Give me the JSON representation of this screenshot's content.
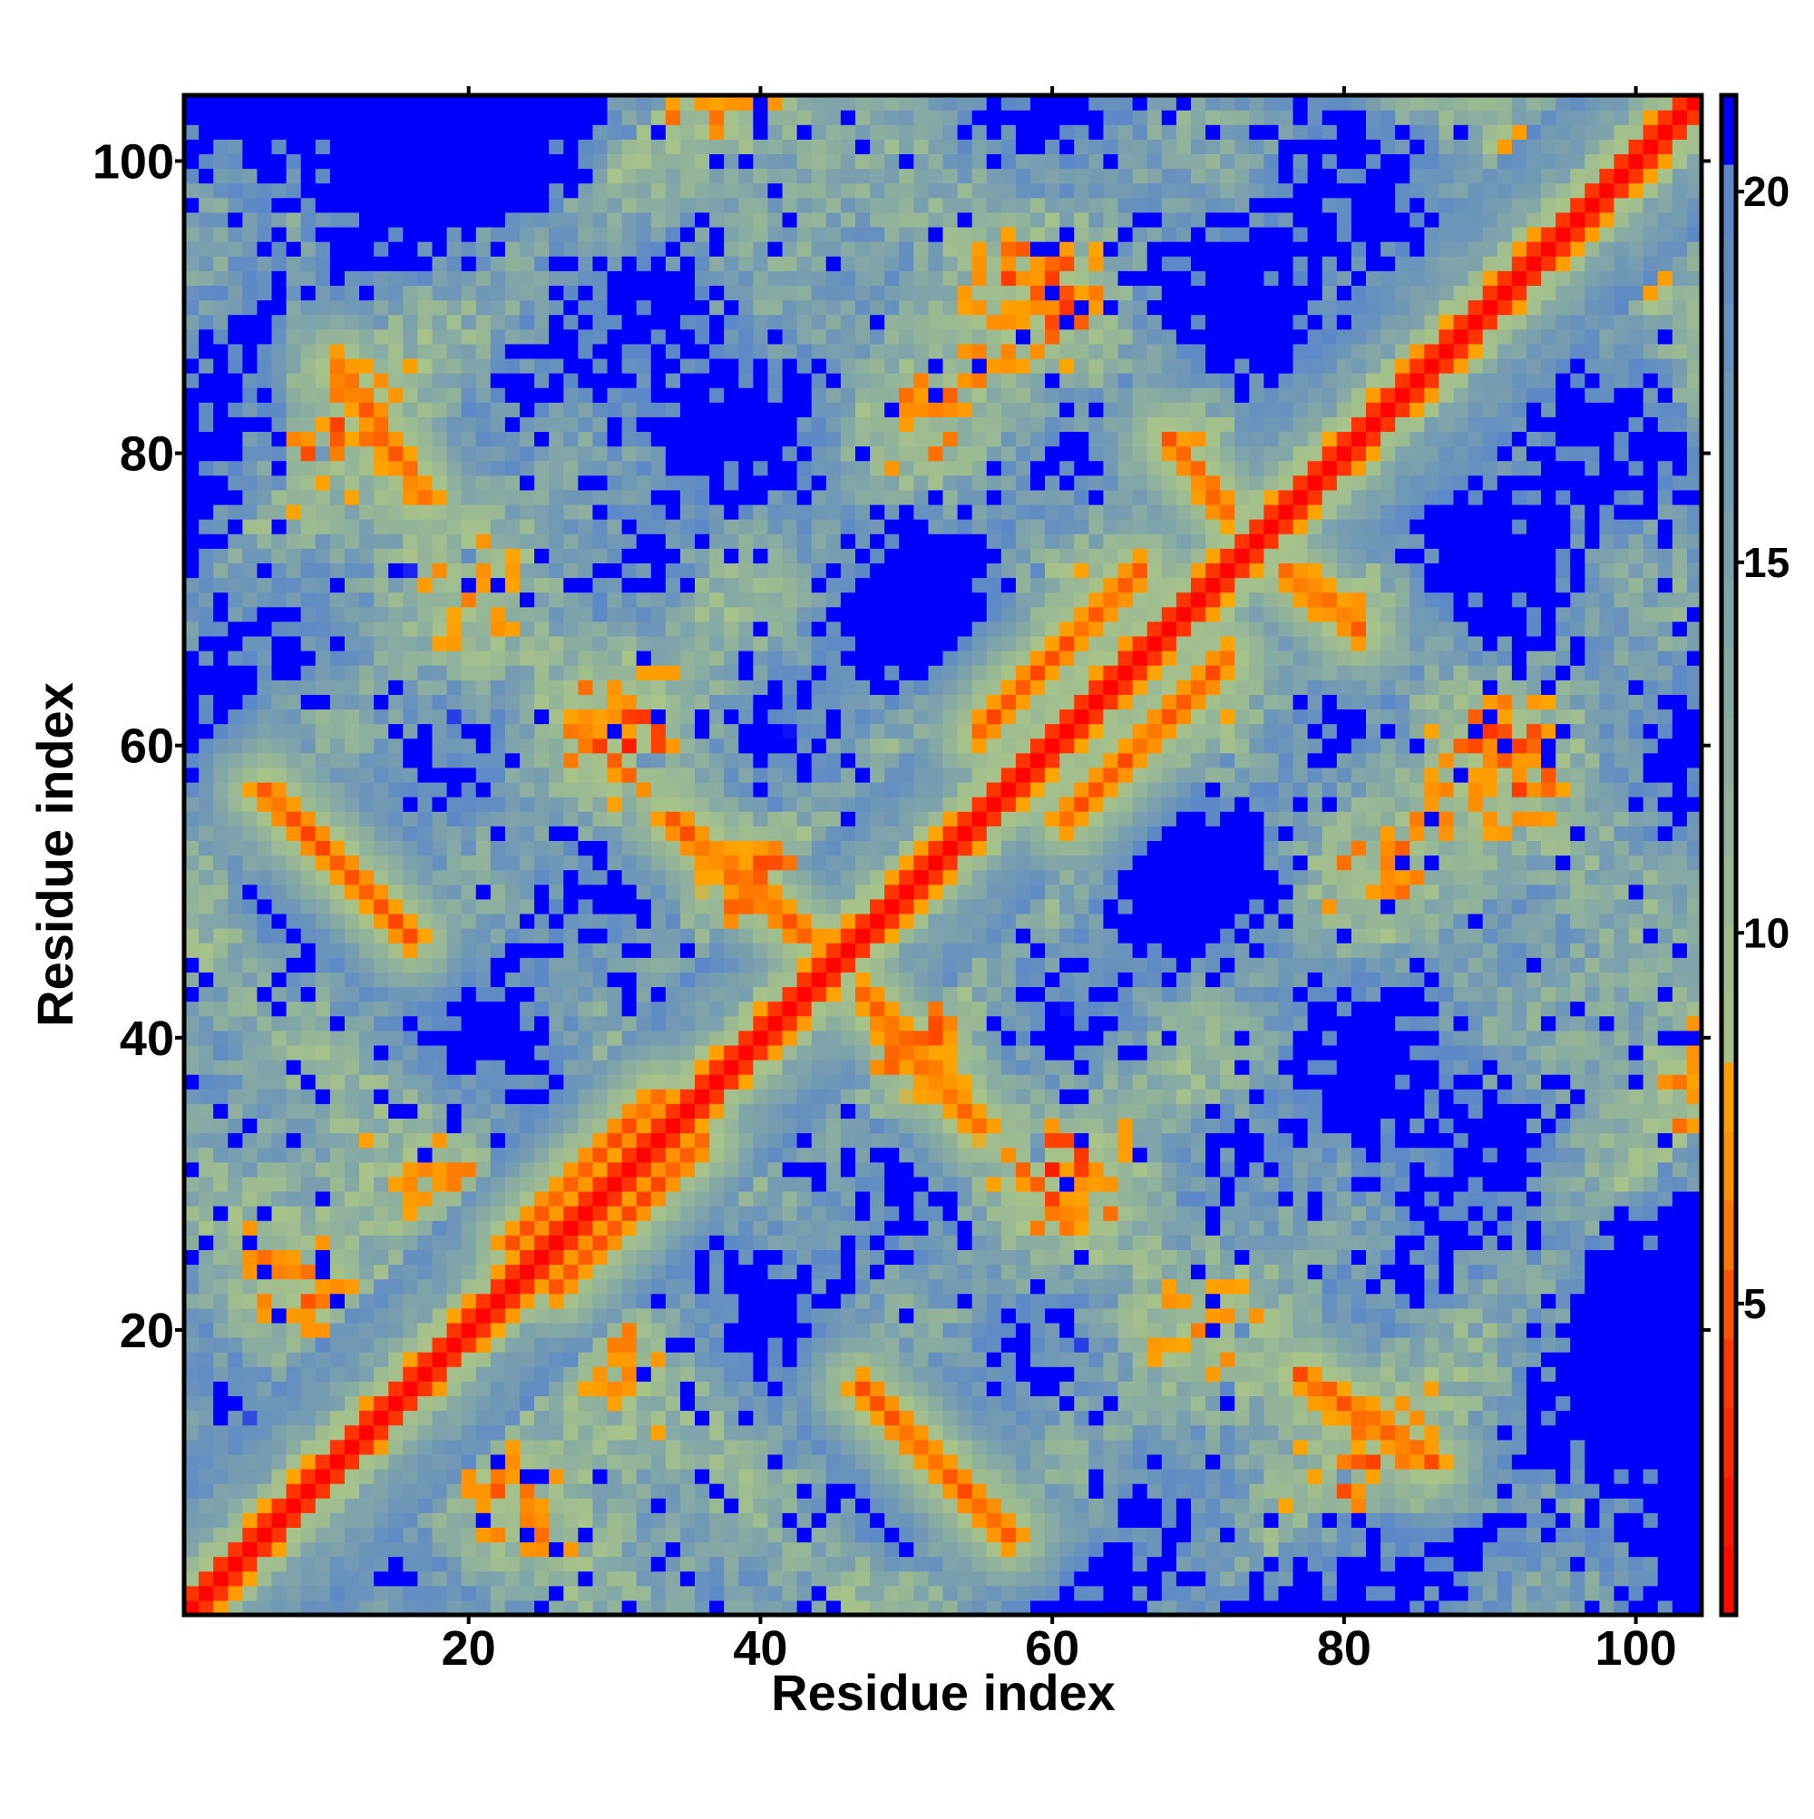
{
  "chart_data": {
    "type": "heatmap",
    "title": "",
    "xlabel": "Residue index",
    "ylabel": "Residue index",
    "n_residues": 104,
    "xlim": [
      0.5,
      104.5
    ],
    "ylim": [
      0.5,
      104.5
    ],
    "xticks": [
      20,
      40,
      60,
      80,
      100
    ],
    "yticks": [
      20,
      40,
      60,
      80,
      100
    ],
    "colorbar": {
      "range": [
        0.8,
        21.3
      ],
      "ticks": [
        5,
        10,
        15,
        20
      ],
      "stops": [
        {
          "value": 0.8,
          "color": "#ff0000"
        },
        {
          "value": 4.5,
          "color": "#ff4000"
        },
        {
          "value": 6.5,
          "color": "#ff8c00"
        },
        {
          "value": 8.3,
          "color": "#ffa500"
        },
        {
          "value": 8.31,
          "color": "#a8c488"
        },
        {
          "value": 20.0,
          "color": "#5b88c8"
        },
        {
          "value": 20.01,
          "color": "#0000ff"
        }
      ]
    },
    "description_of_values": "symmetric residue-residue distance map; diagonal band plus contact strands",
    "contact_strands": [
      {
        "from": [
          11,
          86
        ],
        "to": [
          17,
          77
        ]
      },
      {
        "from": [
          6,
          57
        ],
        "to": [
          16,
          47
        ]
      },
      {
        "from": [
          34,
          55
        ],
        "to": [
          43,
          47
        ]
      },
      {
        "from": [
          68,
          81
        ],
        "to": [
          72,
          76
        ]
      },
      {
        "from": [
          23,
          26
        ],
        "to": [
          33,
          36
        ]
      },
      {
        "from": [
          55,
          61
        ],
        "to": [
          66,
          72
        ]
      }
    ],
    "grid": false
  }
}
